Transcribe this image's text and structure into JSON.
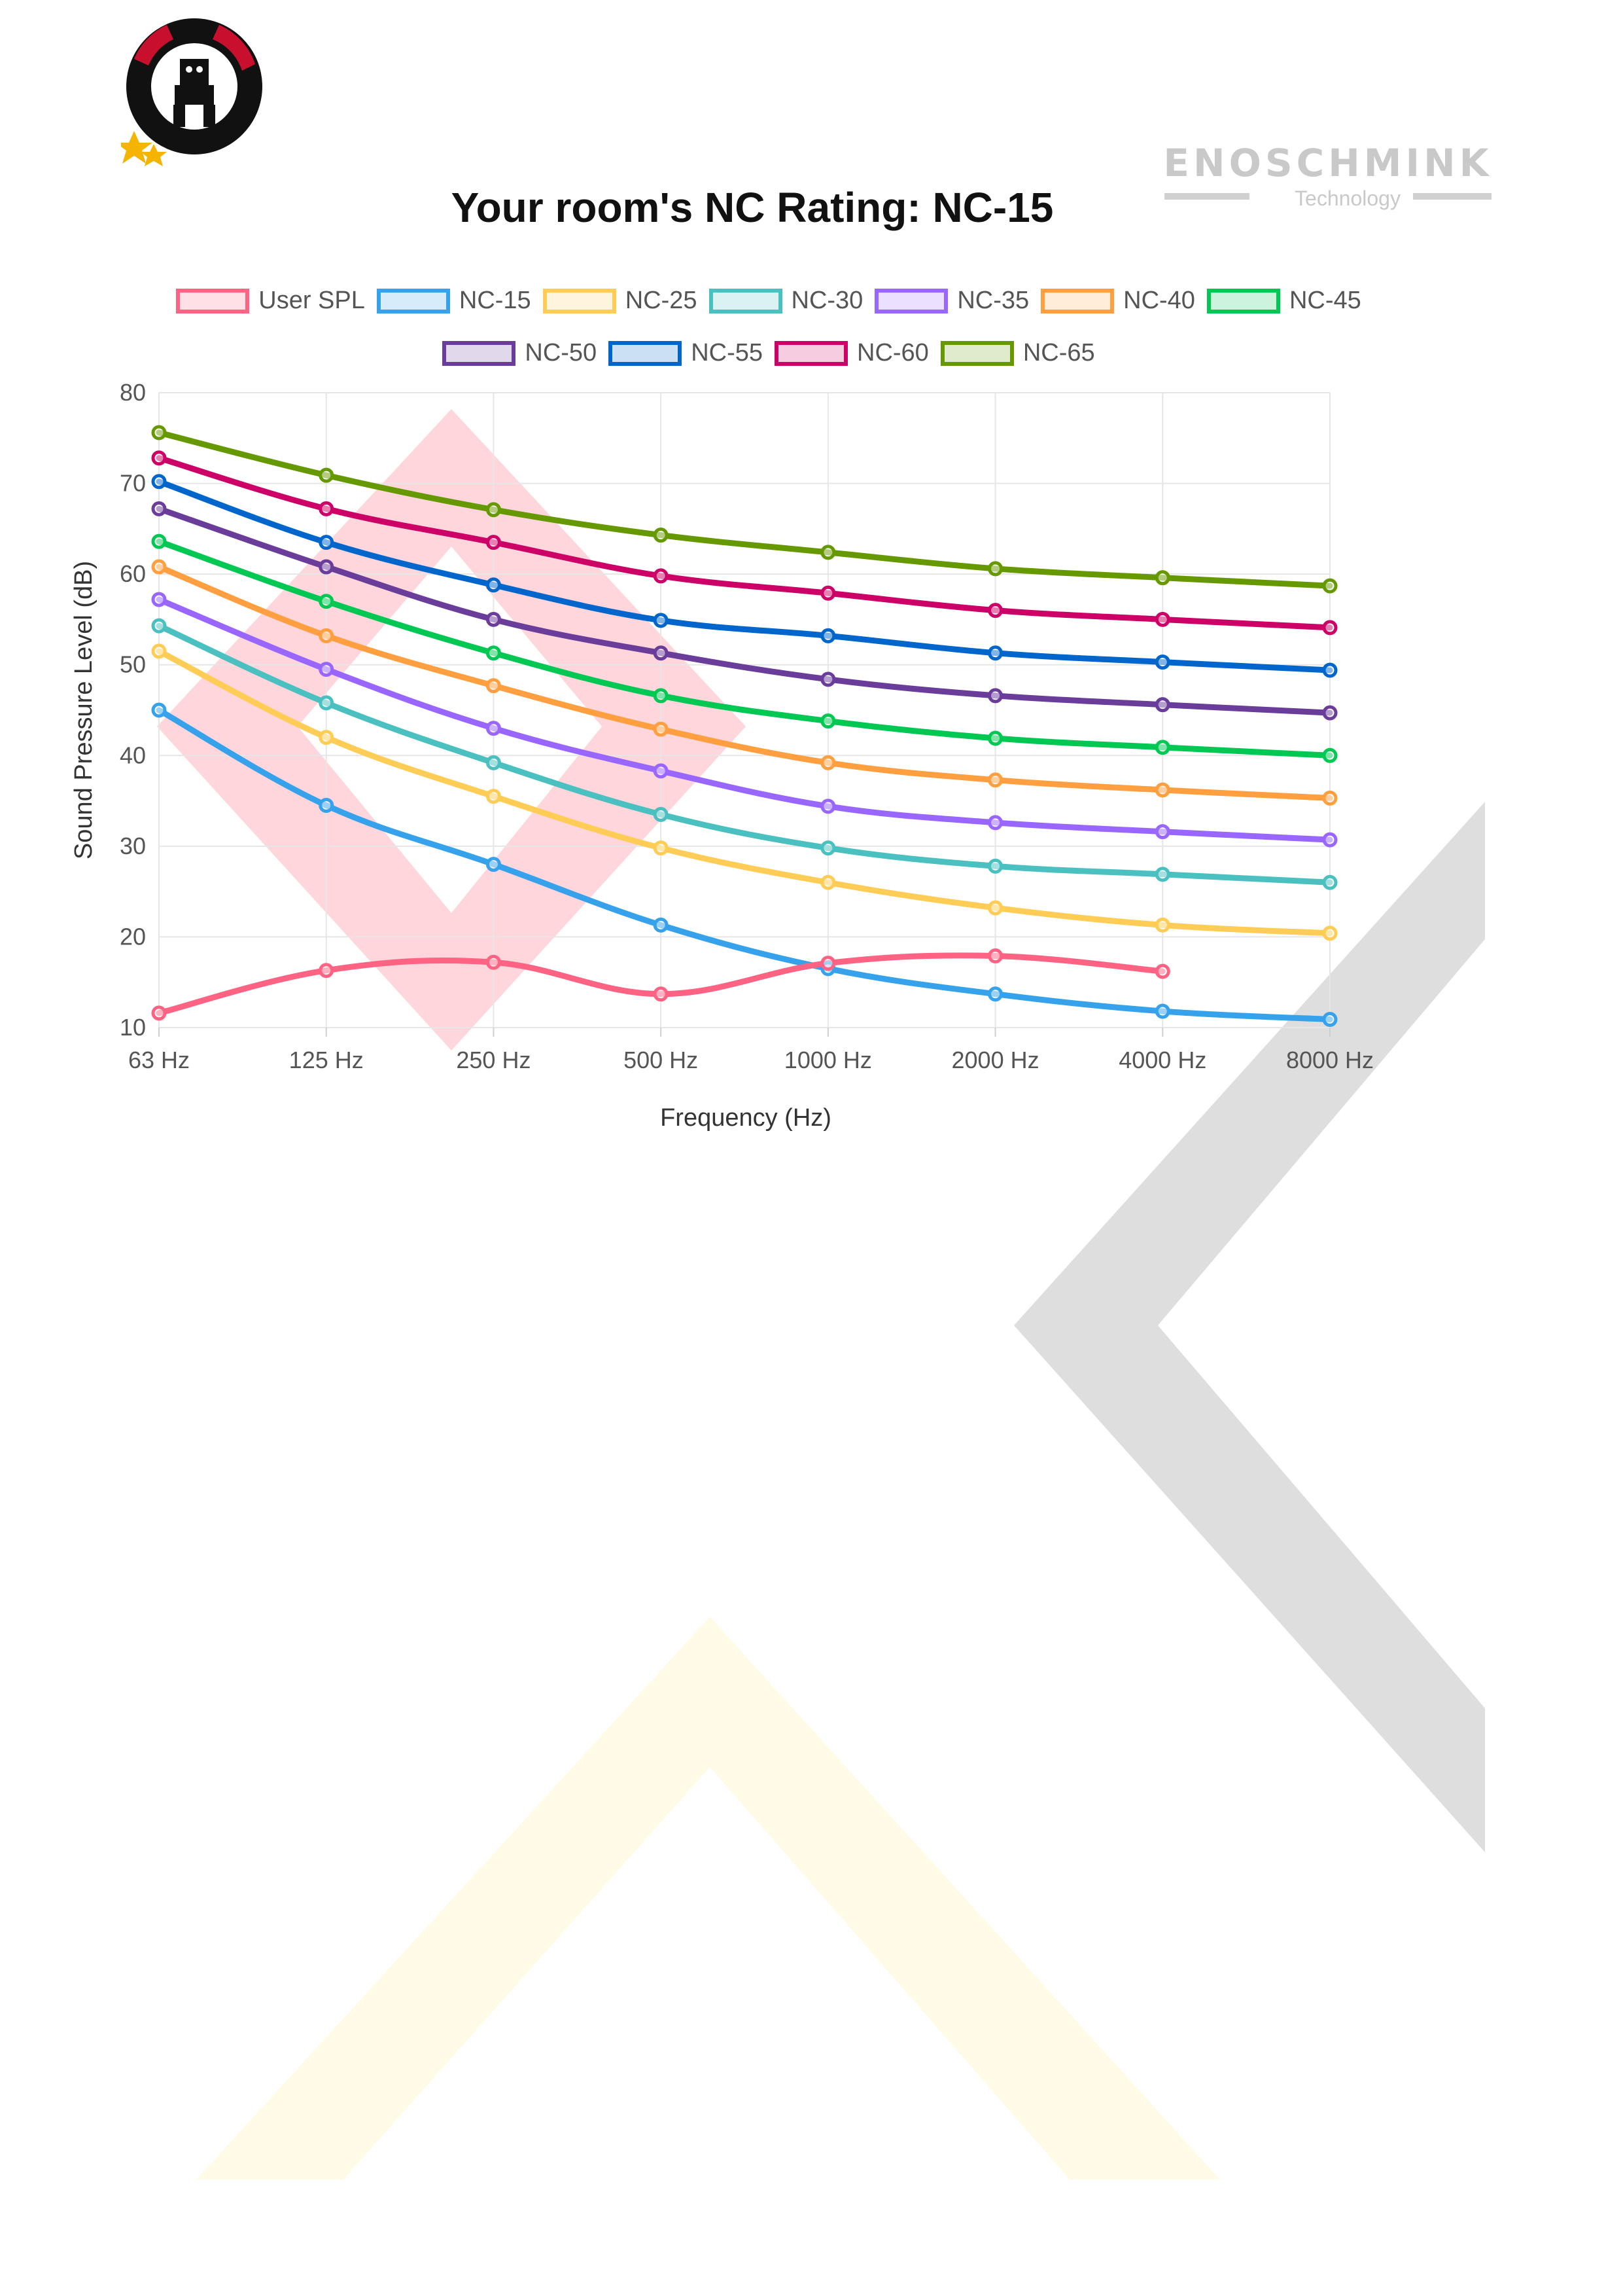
{
  "logos": {
    "left_logo": "",
    "right_logo": {
      "brand": "ENOSCHMINK",
      "sub": "Technology"
    }
  },
  "colors": {
    "user_spl": "#ff6384",
    "nc15": "#36a2eb",
    "nc25": "#ffcd56",
    "nc30": "#4bc0c0",
    "nc35": "#9966ff",
    "nc40": "#ff9f40",
    "nc45": "#00c853",
    "nc50": "#6a3d9a",
    "nc55": "#0066cc",
    "nc60": "#cc0066",
    "nc65": "#669900"
  },
  "chart_data": {
    "type": "line",
    "title": "Your room's NC Rating: NC-15",
    "xlabel": "Frequency (Hz)",
    "ylabel": "Sound Pressure Level (dB)",
    "ylim": [
      10,
      80
    ],
    "yticks": [
      "10",
      "20",
      "30",
      "40",
      "50",
      "60",
      "70",
      "80"
    ],
    "categories": [
      "63 Hz",
      "125 Hz",
      "250 Hz",
      "500 Hz",
      "1000 Hz",
      "2000 Hz",
      "4000 Hz",
      "8000 Hz"
    ],
    "grid": true,
    "legend_position": "top",
    "series": [
      {
        "name": "User SPL",
        "color": "#ff6384",
        "values": [
          11.6,
          16.3,
          17.2,
          13.7,
          17.1,
          17.9,
          16.2,
          null
        ]
      },
      {
        "name": "NC-15",
        "color": "#36a2eb",
        "values": [
          45,
          34.5,
          28,
          21.3,
          16.5,
          13.7,
          11.8,
          10.9
        ]
      },
      {
        "name": "NC-25",
        "color": "#ffcd56",
        "values": [
          51.5,
          42,
          35.5,
          29.8,
          26,
          23.2,
          21.3,
          20.4
        ]
      },
      {
        "name": "NC-30",
        "color": "#4bc0c0",
        "values": [
          54.3,
          45.8,
          39.2,
          33.5,
          29.8,
          27.8,
          26.9,
          26
        ]
      },
      {
        "name": "NC-35",
        "color": "#9966ff",
        "values": [
          57.2,
          49.5,
          43,
          38.3,
          34.4,
          32.6,
          31.6,
          30.7
        ]
      },
      {
        "name": "NC-40",
        "color": "#ff9f40",
        "values": [
          60.8,
          53.2,
          47.7,
          42.9,
          39.2,
          37.3,
          36.2,
          35.3
        ]
      },
      {
        "name": "NC-45",
        "color": "#00c853",
        "values": [
          63.6,
          57,
          51.3,
          46.6,
          43.8,
          41.9,
          40.9,
          40
        ]
      },
      {
        "name": "NC-50",
        "color": "#6a3d9a",
        "values": [
          67.2,
          60.8,
          55,
          51.3,
          48.4,
          46.6,
          45.6,
          44.7
        ]
      },
      {
        "name": "NC-55",
        "color": "#0066cc",
        "values": [
          70.2,
          63.5,
          58.8,
          54.9,
          53.2,
          51.3,
          50.3,
          49.4
        ]
      },
      {
        "name": "NC-60",
        "color": "#cc0066",
        "values": [
          72.8,
          67.2,
          63.5,
          59.8,
          57.9,
          56,
          55,
          54.1
        ]
      },
      {
        "name": "NC-65",
        "color": "#669900",
        "values": [
          75.6,
          70.9,
          67.1,
          64.3,
          62.4,
          60.6,
          59.6,
          58.7
        ]
      }
    ]
  }
}
